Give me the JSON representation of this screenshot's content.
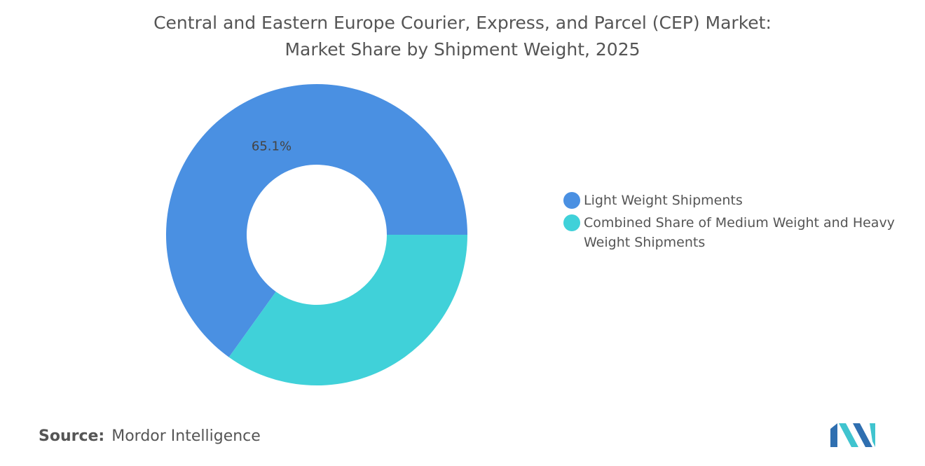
{
  "chart_data": {
    "type": "donut",
    "title": "Central and Eastern Europe Courier, Express, and Parcel (CEP) Market:",
    "subtitle": "Market Share by Shipment Weight, 2025",
    "categories": [
      "Light Weight Shipments",
      "Combined Share of Medium Weight and Heavy Weight Shipments"
    ],
    "values": [
      65.1,
      34.9
    ],
    "value_labels": [
      "65.1%",
      null
    ],
    "colors": [
      "#4a90e2",
      "#40d1d9"
    ],
    "source_label": "Source:",
    "source": "Mordor Intelligence"
  }
}
